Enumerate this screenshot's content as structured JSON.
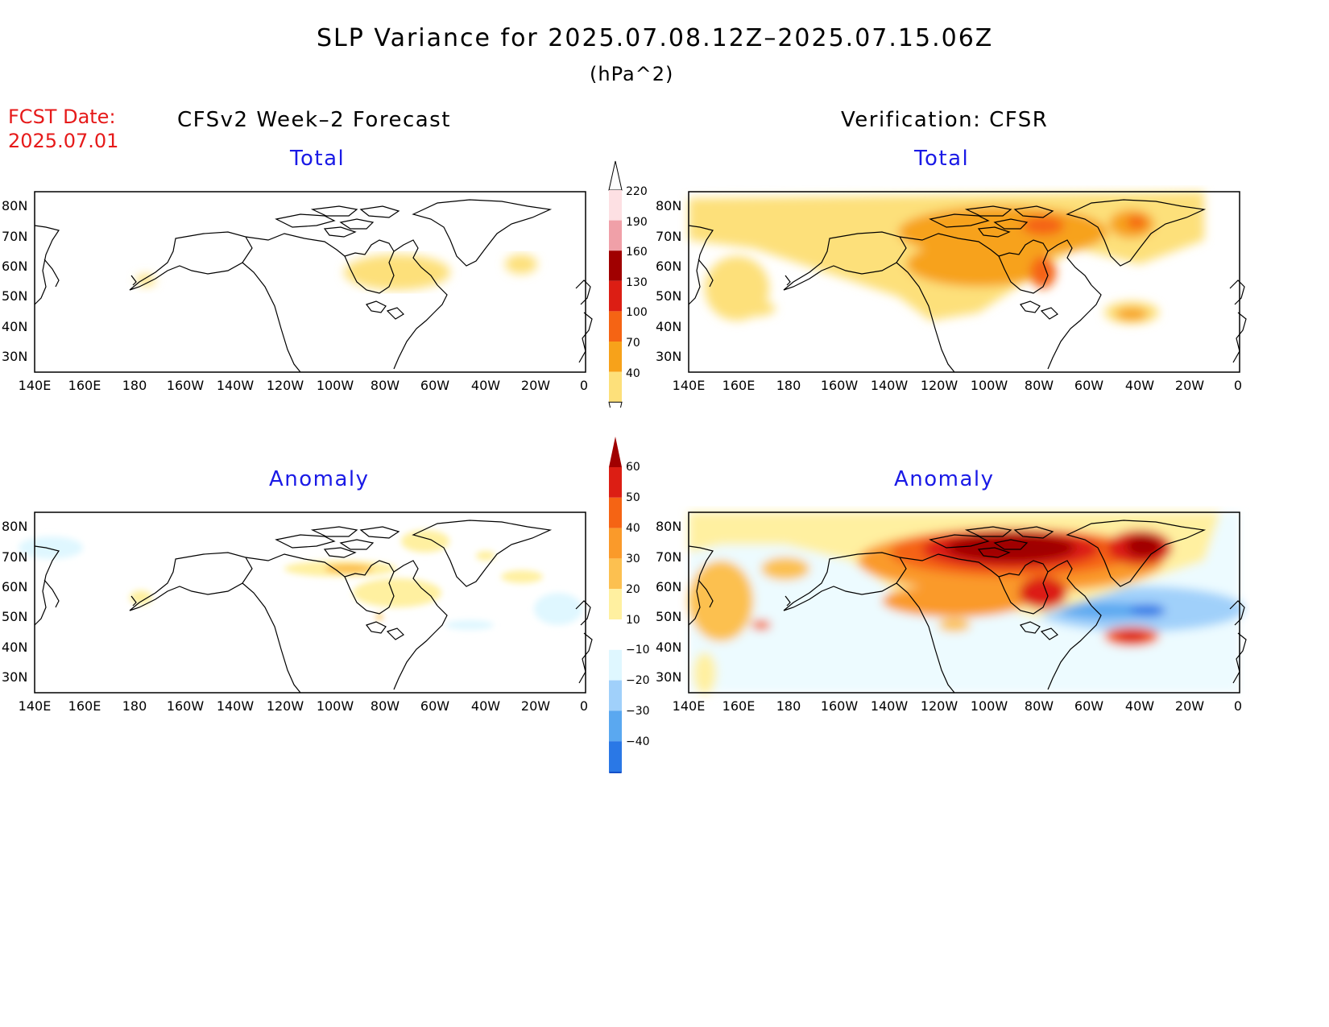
{
  "header": {
    "title": "SLP Variance for 2025.07.08.12Z–2025.07.15.06Z",
    "units": "(hPa^2)",
    "fcst_label": "FCST Date:",
    "fcst_date": "2025.07.01",
    "left_column": "CFSv2 Week–2 Forecast",
    "right_column": "Verification: CFSR"
  },
  "panels": [
    {
      "id": "fcst-total",
      "label": "Total"
    },
    {
      "id": "verif-total",
      "label": "Total"
    },
    {
      "id": "fcst-anomaly",
      "label": "Anomaly"
    },
    {
      "id": "verif-anomaly",
      "label": "Anomaly"
    }
  ],
  "axes": {
    "lat_labels": [
      "80N",
      "70N",
      "60N",
      "50N",
      "40N",
      "30N"
    ],
    "lon_labels": [
      "140E",
      "160E",
      "180",
      "160W",
      "140W",
      "120W",
      "100W",
      "80W",
      "60W",
      "40W",
      "20W",
      "0"
    ]
  },
  "colorbars": {
    "total": {
      "levels": [
        "220",
        "190",
        "160",
        "130",
        "100",
        "70",
        "40"
      ],
      "colors": [
        "#fde0e3",
        "#f0a0a8",
        "#a00000",
        "#dc1e14",
        "#f56414",
        "#f7a21a",
        "#fde07a"
      ]
    },
    "anomaly": {
      "levels": [
        "60",
        "50",
        "40",
        "30",
        "20",
        "10",
        "−10",
        "−20",
        "−30",
        "−40"
      ],
      "colors": [
        "#a00000",
        "#dc1e14",
        "#f56414",
        "#fa9a2a",
        "#fcc050",
        "#fff0a0",
        "#ffffff",
        "#dff7ff",
        "#a0d0fa",
        "#5aa8f0",
        "#2a78e6",
        "#1450c8"
      ]
    }
  }
}
